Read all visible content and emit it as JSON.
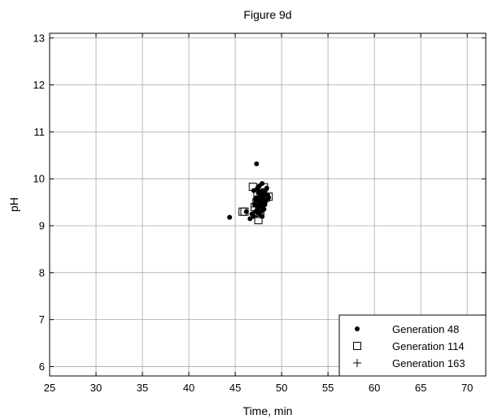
{
  "chart_data": {
    "type": "scatter",
    "title": "Figure 9d",
    "xlabel": "Time, min",
    "ylabel": "pH",
    "xlim": [
      25,
      72
    ],
    "ylim": [
      5.8,
      13.1
    ],
    "x_ticks": [
      25,
      30,
      35,
      40,
      45,
      50,
      55,
      60,
      65,
      70
    ],
    "y_ticks": [
      6,
      7,
      8,
      9,
      10,
      11,
      12,
      13
    ],
    "grid": true,
    "legend_position": "bottom-right",
    "series": [
      {
        "name": "Generation 48",
        "marker": "dot",
        "points": [
          [
            44.4,
            9.18
          ],
          [
            46.2,
            9.3
          ],
          [
            46.6,
            9.15
          ],
          [
            46.8,
            9.25
          ],
          [
            47.0,
            9.2
          ],
          [
            47.1,
            9.45
          ],
          [
            47.2,
            9.3
          ],
          [
            47.3,
            10.32
          ],
          [
            47.3,
            9.6
          ],
          [
            47.4,
            9.35
          ],
          [
            47.5,
            9.4
          ],
          [
            47.5,
            9.7
          ],
          [
            47.6,
            9.25
          ],
          [
            47.6,
            9.5
          ],
          [
            47.7,
            9.55
          ],
          [
            47.7,
            9.3
          ],
          [
            47.8,
            9.45
          ],
          [
            47.8,
            9.65
          ],
          [
            47.9,
            9.9
          ],
          [
            47.9,
            9.4
          ],
          [
            48.0,
            9.6
          ],
          [
            48.0,
            9.75
          ],
          [
            48.1,
            9.5
          ],
          [
            48.1,
            9.35
          ],
          [
            48.2,
            9.7
          ],
          [
            48.3,
            9.55
          ],
          [
            48.4,
            9.8
          ],
          [
            48.5,
            9.65
          ],
          [
            47.4,
            9.8
          ],
          [
            47.2,
            9.55
          ],
          [
            47.0,
            9.75
          ],
          [
            48.2,
            9.45
          ],
          [
            47.6,
            9.85
          ],
          [
            47.9,
            9.2
          ],
          [
            48.6,
            9.6
          ]
        ]
      },
      {
        "name": "Generation 114",
        "marker": "square",
        "points": [
          [
            45.8,
            9.3
          ],
          [
            46.0,
            9.3
          ],
          [
            46.9,
            9.83
          ],
          [
            47.1,
            9.4
          ],
          [
            47.3,
            9.5
          ],
          [
            47.5,
            9.12
          ],
          [
            47.6,
            9.35
          ],
          [
            47.8,
            9.45
          ],
          [
            48.0,
            9.55
          ],
          [
            48.1,
            9.82
          ],
          [
            48.3,
            9.6
          ],
          [
            48.6,
            9.62
          ],
          [
            47.4,
            9.65
          ],
          [
            47.7,
            9.25
          ]
        ]
      },
      {
        "name": "Generation 163",
        "marker": "plus",
        "points": [
          [
            47.2,
            9.4
          ],
          [
            47.4,
            9.5
          ],
          [
            47.5,
            9.6
          ],
          [
            47.6,
            9.45
          ],
          [
            47.7,
            9.7
          ],
          [
            47.8,
            9.55
          ],
          [
            47.9,
            9.35
          ],
          [
            48.0,
            9.65
          ],
          [
            48.1,
            9.5
          ],
          [
            47.3,
            9.3
          ],
          [
            47.6,
            9.75
          ],
          [
            48.2,
            9.6
          ]
        ]
      }
    ]
  }
}
